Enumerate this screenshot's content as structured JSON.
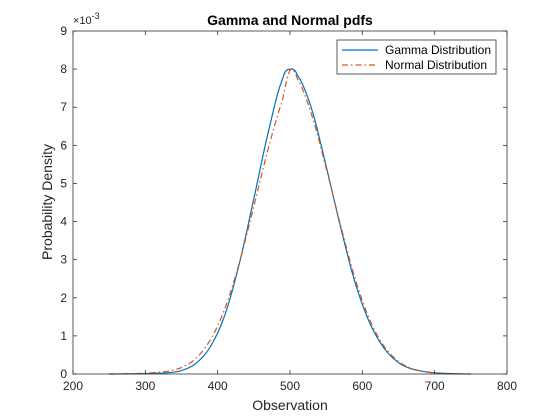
{
  "chart_data": {
    "type": "line",
    "title": "Gamma and Normal pdfs",
    "xlabel": "Observation",
    "ylabel": "Probability Density",
    "xlim": [
      200,
      800
    ],
    "ylim": [
      0,
      9
    ],
    "y_scale_exponent": "×10",
    "y_scale_power": "-3",
    "xticks": [
      "200",
      "300",
      "400",
      "500",
      "600",
      "700",
      "800"
    ],
    "yticks": [
      "0",
      "1",
      "2",
      "3",
      "4",
      "5",
      "6",
      "7",
      "8",
      "9"
    ],
    "grid": false,
    "legend_position": "top-right",
    "series": [
      {
        "name": "Gamma Distribution",
        "style": "solid",
        "color": "#0072BD",
        "x": [
          250,
          300,
          330,
          350,
          370,
          390,
          410,
          430,
          450,
          470,
          490,
          500,
          510,
          530,
          550,
          570,
          590,
          610,
          630,
          650,
          670,
          700,
          750
        ],
        "y": [
          0.0,
          0.01,
          0.03,
          0.09,
          0.28,
          0.72,
          1.55,
          2.9,
          4.6,
          6.35,
          7.75,
          8.0,
          7.85,
          6.95,
          5.45,
          3.85,
          2.4,
          1.35,
          0.68,
          0.3,
          0.12,
          0.03,
          0.0
        ]
      },
      {
        "name": "Normal Distribution",
        "style": "dashdot",
        "color": "#D95319",
        "x": [
          250,
          300,
          330,
          350,
          370,
          390,
          410,
          430,
          450,
          470,
          490,
          500,
          510,
          530,
          550,
          570,
          590,
          610,
          630,
          650,
          670,
          700,
          750
        ],
        "y": [
          0.0,
          0.02,
          0.07,
          0.17,
          0.41,
          0.9,
          1.72,
          2.92,
          4.4,
          5.92,
          7.2,
          7.98,
          7.75,
          6.8,
          5.4,
          3.9,
          2.5,
          1.43,
          0.73,
          0.33,
          0.13,
          0.02,
          0.0
        ]
      }
    ]
  }
}
